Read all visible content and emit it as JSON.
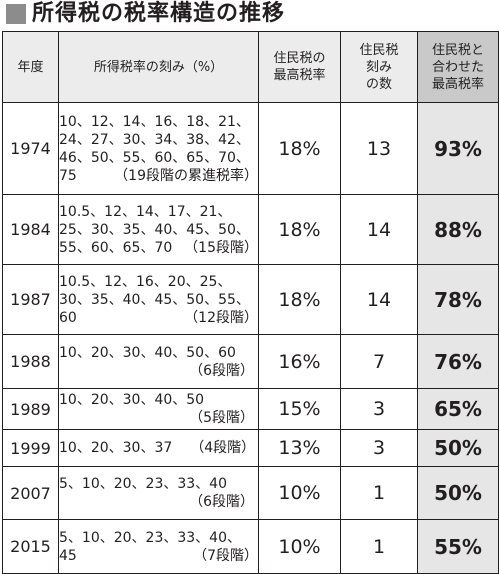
{
  "title": "所得税の税率構造の推移",
  "headers": {
    "year": "年度",
    "rates": "所得税率の刻み（%）",
    "resident_top": "住民税の\n最高税率",
    "brackets": "住民税\n刻み\nの数",
    "combined": "住民税と\n合わせた\n最高税率"
  },
  "rows": [
    {
      "year": "1974",
      "rate_lines": [
        "10、12、14、16、18、21、",
        "24、27、30、34、38、42、",
        "46、50、55、60、65、70、"
      ],
      "last_line": "75",
      "steps": "（19段階の累進税率）",
      "resident_top": "18%",
      "brackets": "13",
      "combined": "93%"
    },
    {
      "year": "1984",
      "rate_lines": [
        "10.5、12、14、17、21、",
        "25、30、35、40、45、50、"
      ],
      "last_line": "55、60、65、70",
      "steps": "（15段階）",
      "resident_top": "18%",
      "brackets": "14",
      "combined": "88%"
    },
    {
      "year": "1987",
      "rate_lines": [
        "10.5、12、16、20、25、",
        "30、35、40、45、50、55、"
      ],
      "last_line": "60",
      "steps": "（12段階）",
      "resident_top": "18%",
      "brackets": "14",
      "combined": "78%"
    },
    {
      "year": "1988",
      "rate_lines": [
        "10、20、30、40、50、60"
      ],
      "steps": "（6段階）",
      "resident_top": "16%",
      "brackets": "7",
      "combined": "76%"
    },
    {
      "year": "1989",
      "rate_lines": [
        "10、20、30、40、50"
      ],
      "steps": "（5段階）",
      "resident_top": "15%",
      "brackets": "3",
      "combined": "65%"
    },
    {
      "year": "1999",
      "rate_lines": [
        "10、20、30、37"
      ],
      "inline_steps": "（4段階）",
      "resident_top": "13%",
      "brackets": "3",
      "combined": "50%"
    },
    {
      "year": "2007",
      "rate_lines": [
        "5、10、20、23、33、40"
      ],
      "steps": "（6段階）",
      "resident_top": "10%",
      "brackets": "1",
      "combined": "50%"
    },
    {
      "year": "2015",
      "rate_lines": [
        "5、10、20、23、33、40、"
      ],
      "last_line": "45",
      "steps": "（7段階）",
      "resident_top": "10%",
      "brackets": "1",
      "combined": "55%"
    }
  ]
}
